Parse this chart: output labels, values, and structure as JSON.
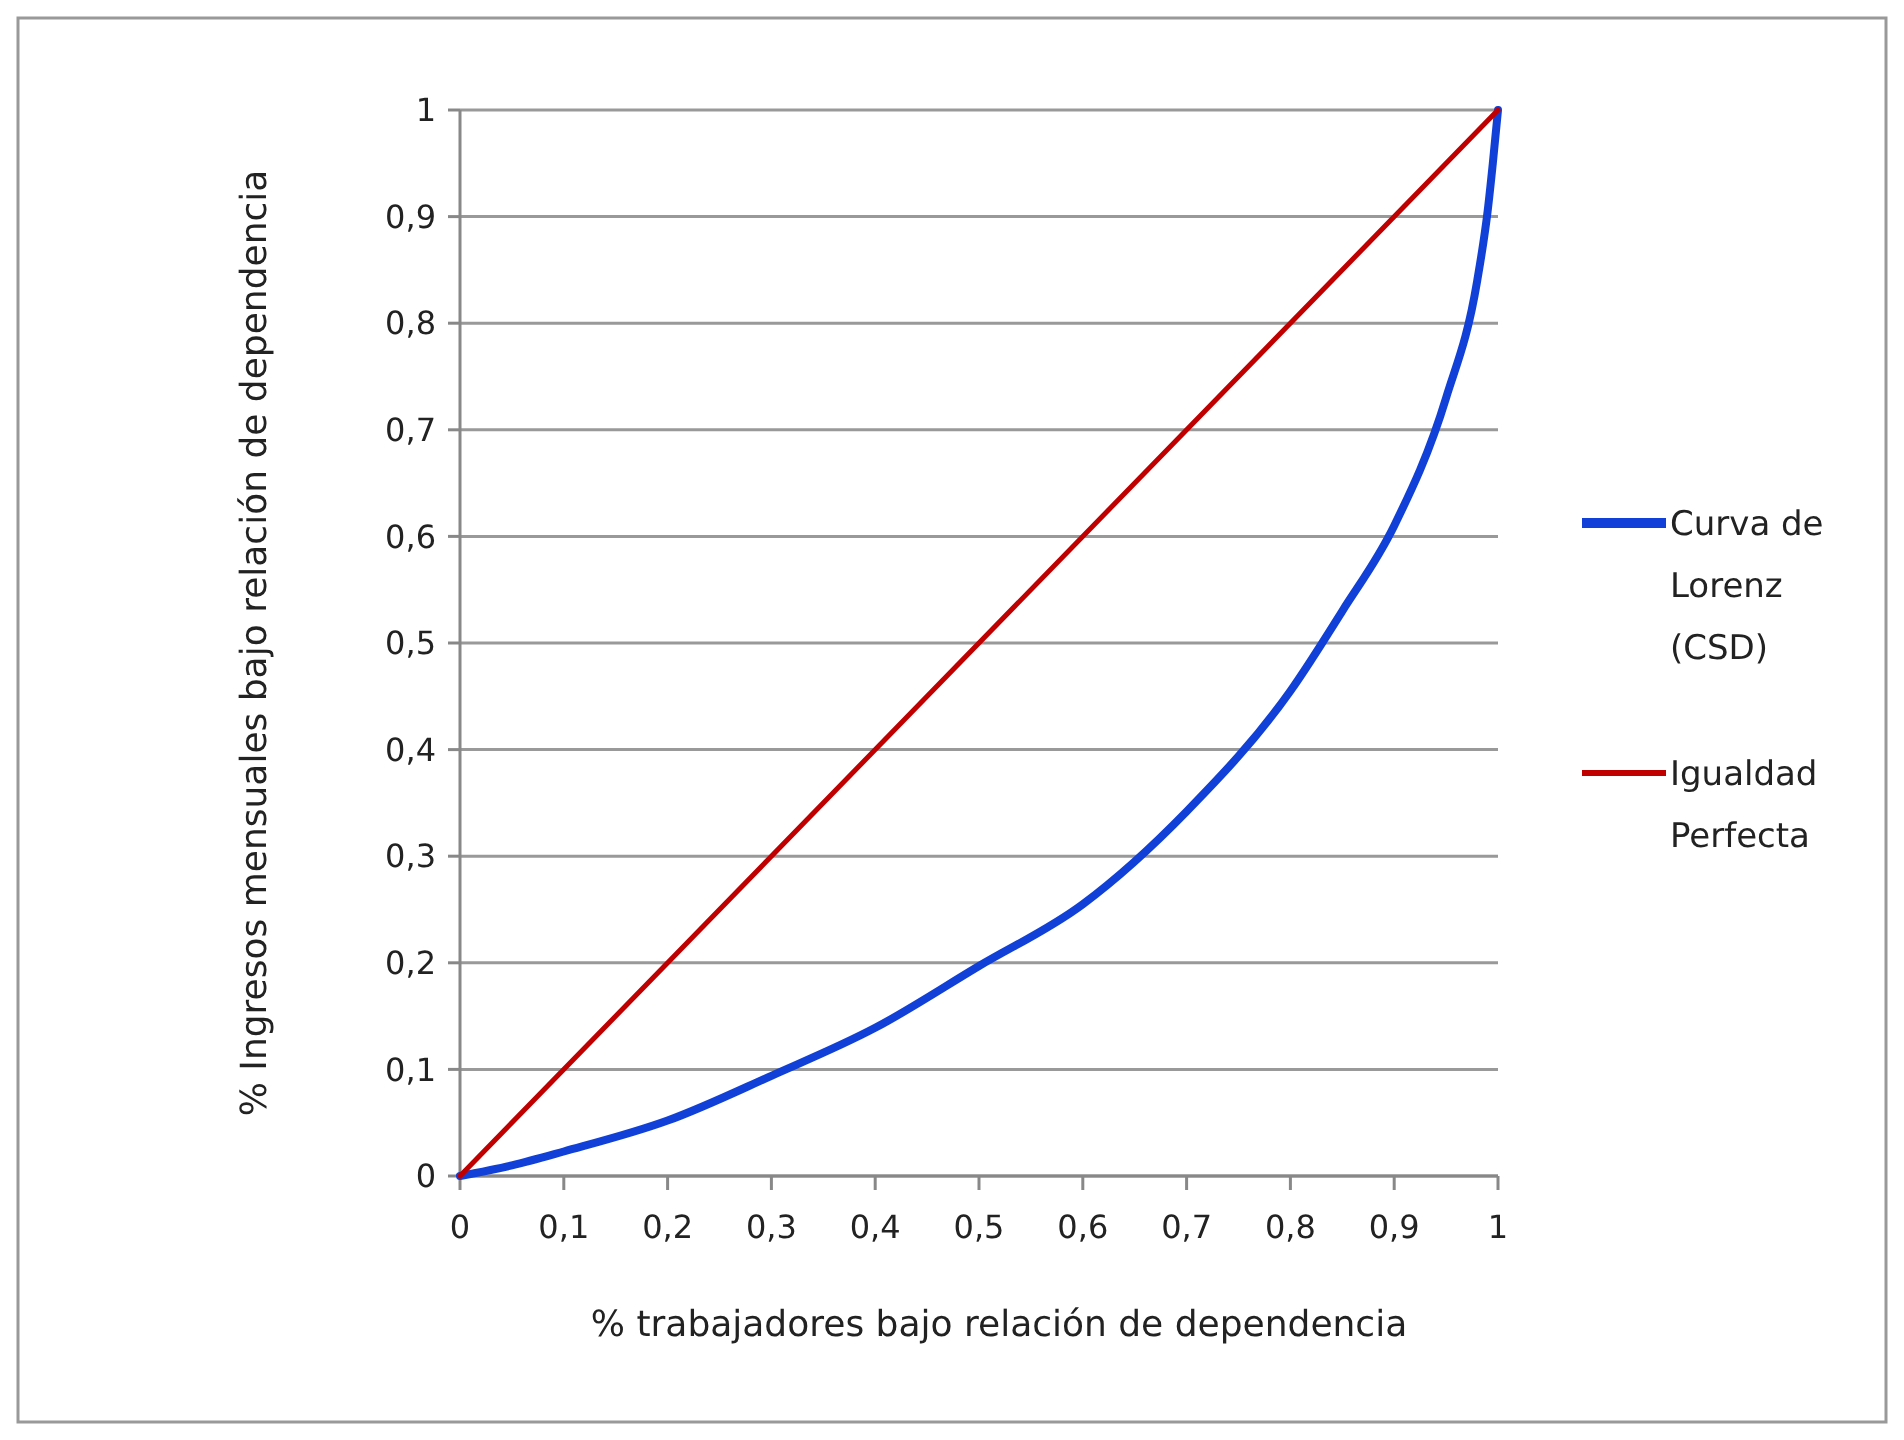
{
  "chart_data": {
    "type": "line",
    "xlabel": "% trabajadores bajo relación de dependencia",
    "ylabel": "% Ingresos mensuales bajo relación de dependencia",
    "xlim": [
      0,
      1
    ],
    "ylim": [
      0,
      1
    ],
    "xticks": [
      0,
      {
        "value": 0.1,
        "label": "0,1"
      },
      {
        "value": 0.2,
        "label": "0,2"
      },
      {
        "value": 0.3,
        "label": "0,3"
      },
      {
        "value": 0.4,
        "label": "0,4"
      },
      {
        "value": 0.5,
        "label": "0,5"
      },
      {
        "value": 0.6,
        "label": "0,6"
      },
      {
        "value": 0.7,
        "label": "0,7"
      },
      {
        "value": 0.8,
        "label": "0,8"
      },
      {
        "value": 0.9,
        "label": "0,9"
      },
      1
    ],
    "yticks": [
      0,
      {
        "value": 0.1,
        "label": "0,1"
      },
      {
        "value": 0.2,
        "label": "0,2"
      },
      {
        "value": 0.3,
        "label": "0,3"
      },
      {
        "value": 0.4,
        "label": "0,4"
      },
      {
        "value": 0.5,
        "label": "0,5"
      },
      {
        "value": 0.6,
        "label": "0,6"
      },
      {
        "value": 0.7,
        "label": "0,7"
      },
      {
        "value": 0.8,
        "label": "0,8"
      },
      {
        "value": 0.9,
        "label": "0,9"
      },
      1
    ],
    "grid": "y",
    "legend": "right",
    "marker": "none",
    "line_style": "solid",
    "series": [
      {
        "name": "Curva de Lorenz (CSD)",
        "color": "#1040d8",
        "x": [
          0,
          0.05,
          0.1,
          0.2,
          0.3,
          0.4,
          0.5,
          0.6,
          0.7,
          0.8,
          0.85,
          0.9,
          0.95,
          0.98,
          0.99,
          0.995,
          1
        ],
        "values": [
          0,
          0.01,
          0.023,
          0.052,
          0.094,
          0.139,
          0.197,
          0.255,
          0.342,
          0.455,
          0.53,
          0.61,
          0.73,
          0.84,
          0.905,
          0.95,
          1
        ]
      },
      {
        "name": "Igualdad Perfecta",
        "color": "#c00000",
        "x": [
          0,
          1
        ],
        "values": [
          0,
          1
        ]
      }
    ]
  }
}
